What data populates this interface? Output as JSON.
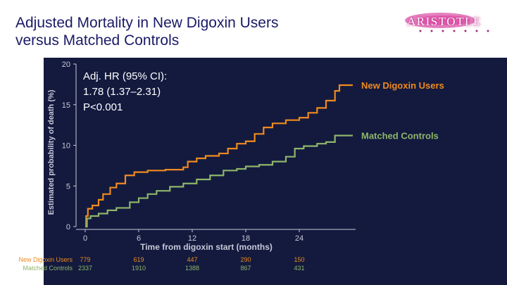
{
  "slide": {
    "title_line1": "Adjusted Mortality in New Digoxin Users",
    "title_line2": "versus Matched Controls",
    "logo_text": "ARISTOTLE"
  },
  "colors": {
    "background": "#131a3e",
    "title": "#1a1a66",
    "digoxin": "#f08a1e",
    "controls": "#8fb56a",
    "axis": "#c8c8d8",
    "annotation": "#ffffff"
  },
  "annotation": {
    "line1": "Adj. HR (95% CI):",
    "line2": "1.78 (1.37–2.31)",
    "line3": "P<0.001"
  },
  "chart_data": {
    "type": "line",
    "step": true,
    "xlabel": "Time from digoxin start (months)",
    "ylabel": "Estimated probability of death (%)",
    "xlim": [
      0,
      30
    ],
    "ylim": [
      0,
      20
    ],
    "x_ticks": [
      0,
      6,
      12,
      18,
      24
    ],
    "y_ticks": [
      0,
      5,
      10,
      15,
      20
    ],
    "grid": false,
    "legend": "inline-right",
    "series": [
      {
        "name": "New Digoxin Users",
        "color": "#f08a1e",
        "points": [
          [
            0,
            0
          ],
          [
            0.1,
            1.3
          ],
          [
            0.3,
            2.2
          ],
          [
            0.8,
            2.6
          ],
          [
            1.5,
            3.3
          ],
          [
            2.0,
            4.0
          ],
          [
            2.8,
            4.8
          ],
          [
            3.5,
            5.3
          ],
          [
            4.5,
            6.3
          ],
          [
            5.5,
            6.7
          ],
          [
            7.0,
            6.9
          ],
          [
            9.0,
            7.0
          ],
          [
            11.0,
            7.3
          ],
          [
            11.5,
            8.0
          ],
          [
            12.5,
            8.4
          ],
          [
            13.5,
            8.7
          ],
          [
            15.0,
            9.0
          ],
          [
            16.0,
            9.6
          ],
          [
            17.0,
            10.2
          ],
          [
            18.0,
            10.5
          ],
          [
            19.0,
            11.4
          ],
          [
            20.0,
            12.2
          ],
          [
            21.0,
            12.7
          ],
          [
            22.5,
            13.1
          ],
          [
            24.0,
            13.4
          ],
          [
            25.0,
            14.0
          ],
          [
            26.0,
            14.6
          ],
          [
            27.0,
            15.5
          ],
          [
            28.0,
            16.7
          ],
          [
            28.5,
            17.4
          ],
          [
            30.0,
            17.4
          ]
        ]
      },
      {
        "name": "Matched Controls",
        "color": "#8fb56a",
        "points": [
          [
            0,
            0
          ],
          [
            0.2,
            1.0
          ],
          [
            0.6,
            1.3
          ],
          [
            1.5,
            1.6
          ],
          [
            2.5,
            2.0
          ],
          [
            3.5,
            2.3
          ],
          [
            5.0,
            3.0
          ],
          [
            6.0,
            3.5
          ],
          [
            7.0,
            4.0
          ],
          [
            8.0,
            4.4
          ],
          [
            9.5,
            4.9
          ],
          [
            11.0,
            5.3
          ],
          [
            12.5,
            5.8
          ],
          [
            14.0,
            6.3
          ],
          [
            15.5,
            6.9
          ],
          [
            17.0,
            7.1
          ],
          [
            18.0,
            7.4
          ],
          [
            19.5,
            7.6
          ],
          [
            21.0,
            8.0
          ],
          [
            22.5,
            8.6
          ],
          [
            23.5,
            9.6
          ],
          [
            24.5,
            9.9
          ],
          [
            26.0,
            10.2
          ],
          [
            27.0,
            10.4
          ],
          [
            28.0,
            11.2
          ],
          [
            30.0,
            11.2
          ]
        ]
      }
    ],
    "risk_table": {
      "x": [
        0,
        6,
        12,
        18,
        24
      ],
      "rows": [
        {
          "label": "New Digoxin Users",
          "values": [
            "779",
            "619",
            "447",
            "290",
            "150"
          ]
        },
        {
          "label": "Matched Controls",
          "values": [
            "2337",
            "1910",
            "1388",
            "867",
            "431"
          ]
        }
      ]
    }
  }
}
